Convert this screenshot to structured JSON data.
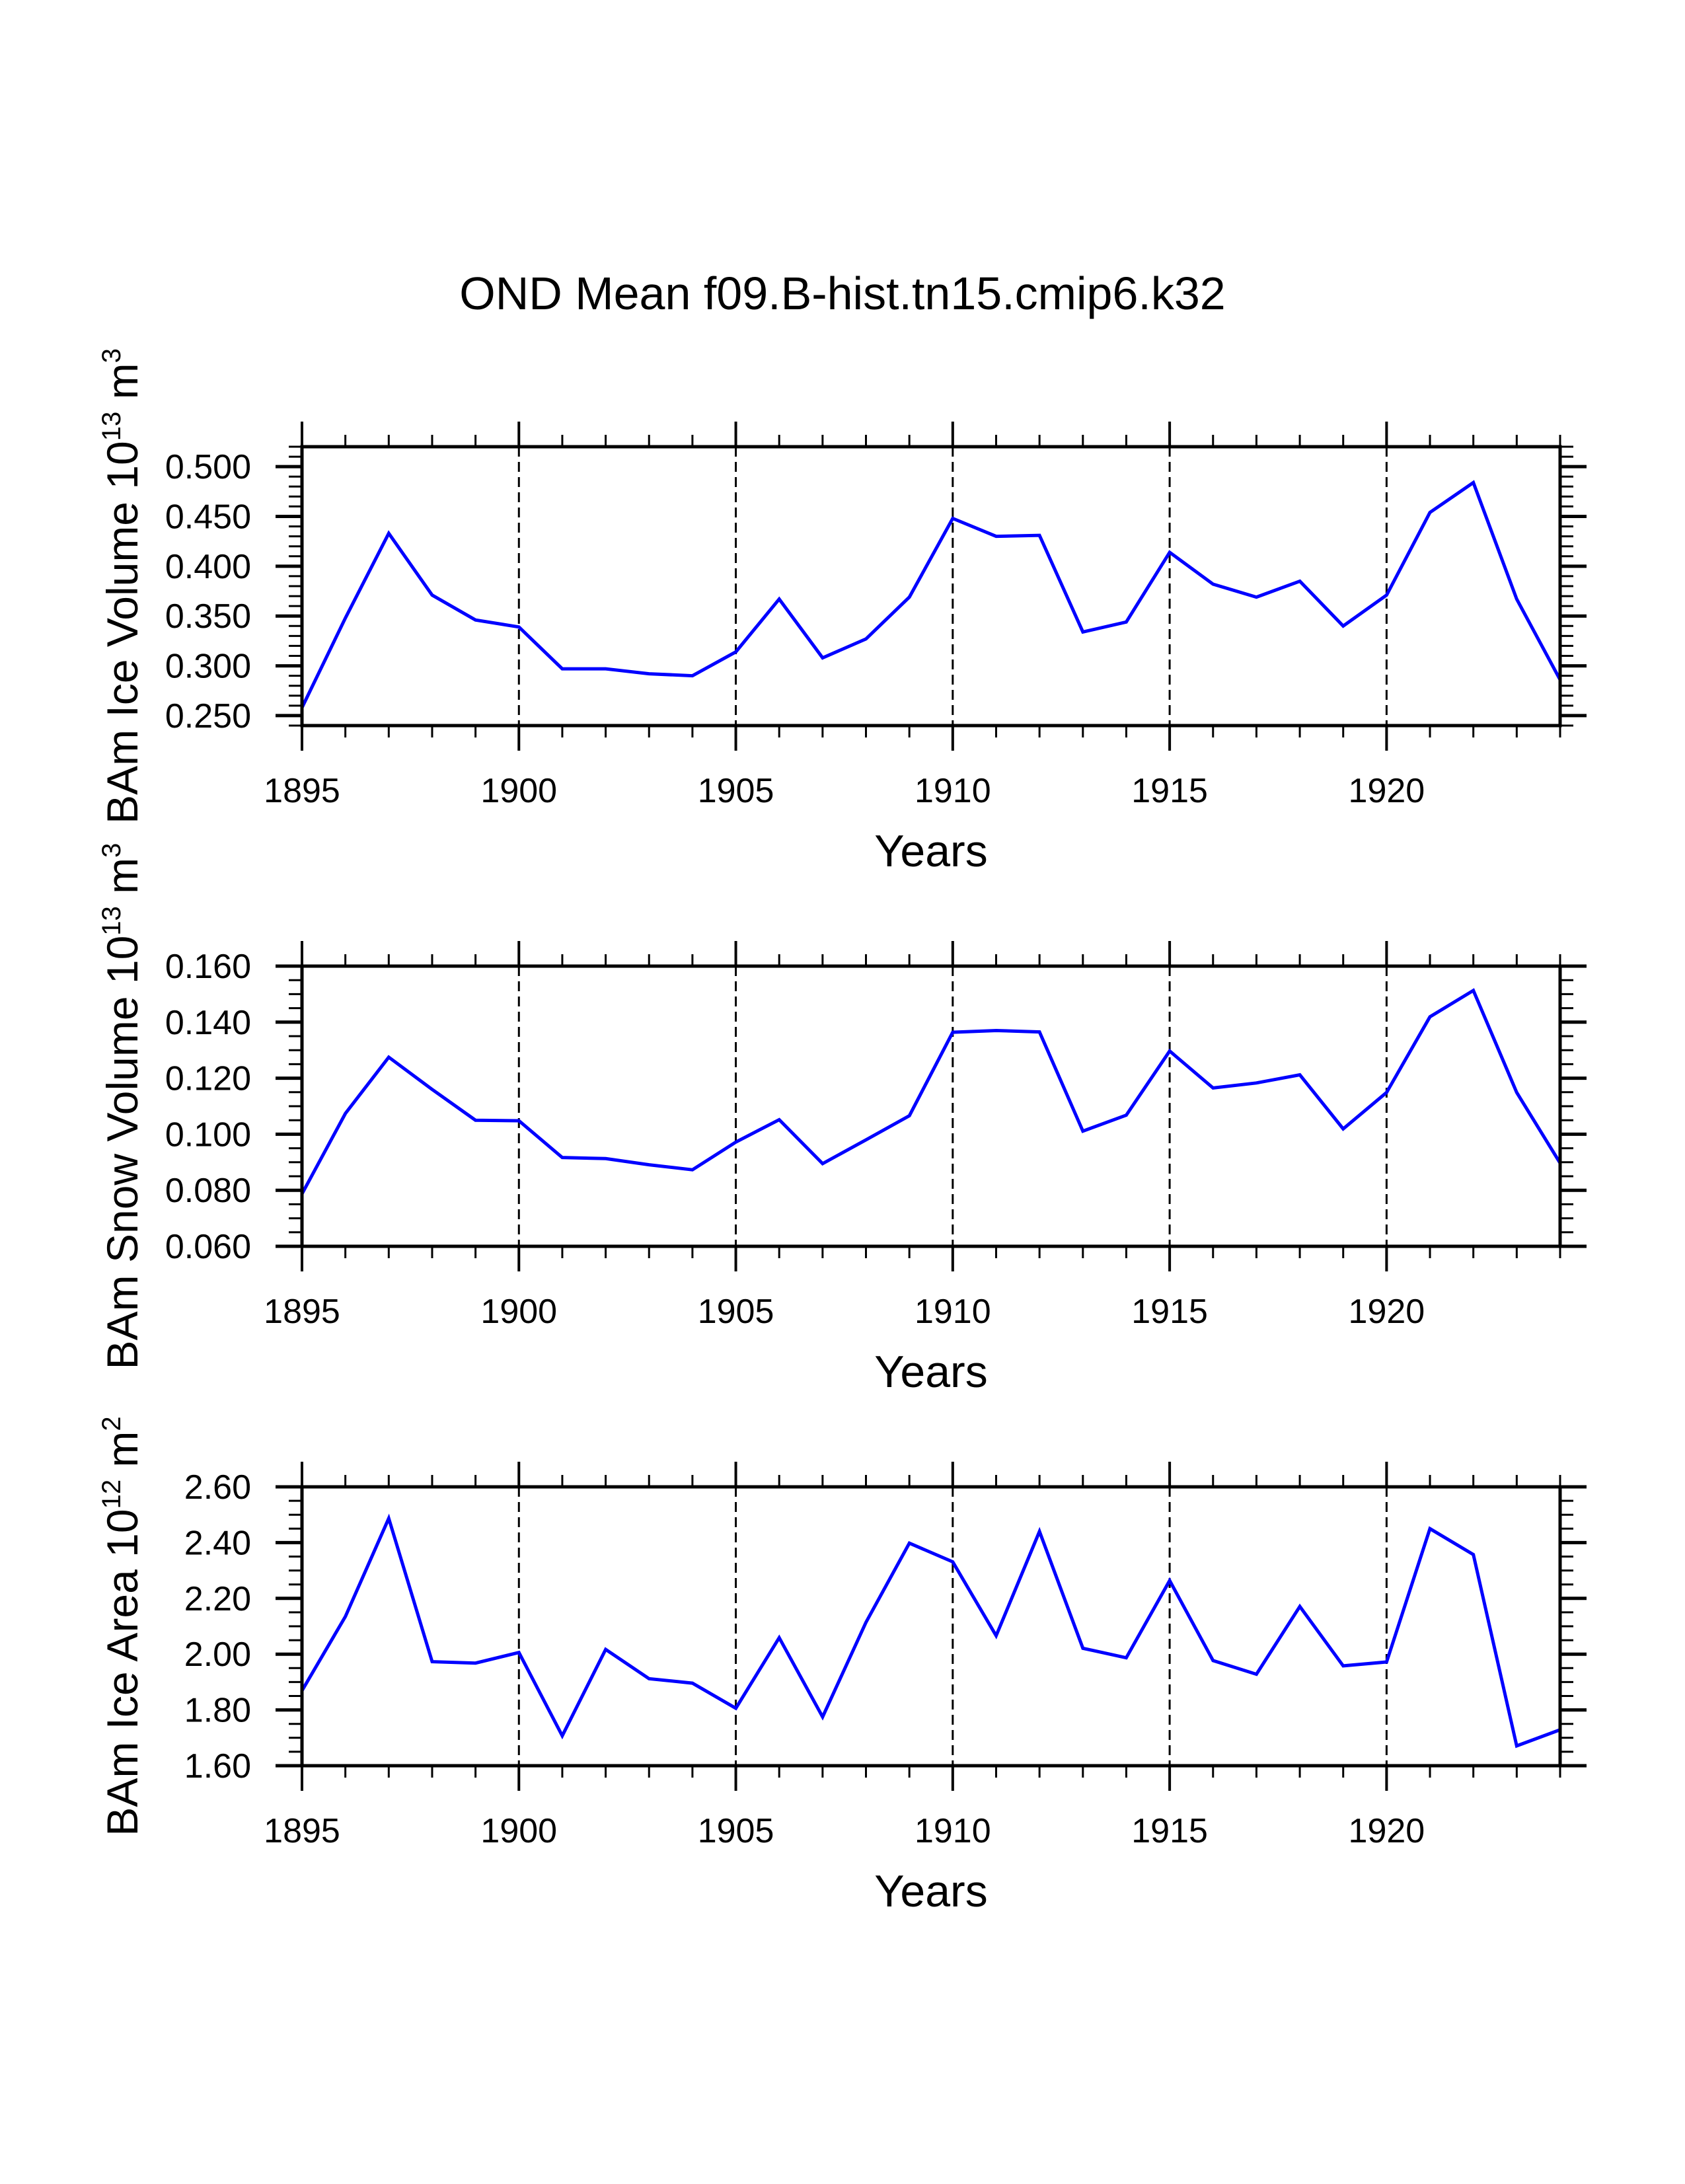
{
  "figure": {
    "title": "OND Mean f09.B-hist.tn15.cmip6.k32",
    "line_color": "#0000FF",
    "grid_color": "#000000"
  },
  "chart_data": [
    {
      "type": "line",
      "title": "OND Mean f09.B-hist.tn15.cmip6.k32",
      "xlabel": "Years",
      "ylabel": {
        "text": "BAm Ice Volume 10",
        "exp": "13",
        "unit": " m",
        "unit_exp": "3"
      },
      "xlim": [
        1895,
        1924
      ],
      "ylim": [
        0.24,
        0.52
      ],
      "x_major_ticks": [
        1895,
        1900,
        1905,
        1910,
        1915,
        1920
      ],
      "x_tick_labels": [
        "1895",
        "1900",
        "1905",
        "1910",
        "1915",
        "1920"
      ],
      "y_major_ticks": [
        0.25,
        0.3,
        0.35,
        0.4,
        0.45,
        0.5
      ],
      "y_tick_labels": [
        "0.250",
        "0.300",
        "0.350",
        "0.400",
        "0.450",
        "0.500"
      ],
      "y_minor_step": 0.01,
      "grid": "dashed vertical lines at major x ticks",
      "x": [
        1895,
        1896,
        1897,
        1898,
        1899,
        1900,
        1901,
        1902,
        1903,
        1904,
        1905,
        1906,
        1907,
        1908,
        1909,
        1910,
        1911,
        1912,
        1913,
        1914,
        1915,
        1916,
        1917,
        1918,
        1919,
        1920,
        1921,
        1922,
        1923,
        1924
      ],
      "series": [
        {
          "name": "BAm Ice Volume",
          "values": [
            0.258,
            0.348,
            0.433,
            0.371,
            0.346,
            0.339,
            0.297,
            0.297,
            0.292,
            0.29,
            0.314,
            0.367,
            0.308,
            0.327,
            0.369,
            0.448,
            0.43,
            0.431,
            0.334,
            0.344,
            0.414,
            0.382,
            0.369,
            0.385,
            0.34,
            0.371,
            0.454,
            0.484,
            0.367,
            0.286
          ]
        }
      ]
    },
    {
      "type": "line",
      "xlabel": "Years",
      "ylabel": {
        "text": "BAm Snow Volume 10",
        "exp": "13",
        "unit": " m",
        "unit_exp": "3"
      },
      "xlim": [
        1895,
        1924
      ],
      "ylim": [
        0.06,
        0.16
      ],
      "x_major_ticks": [
        1895,
        1900,
        1905,
        1910,
        1915,
        1920
      ],
      "x_tick_labels": [
        "1895",
        "1900",
        "1905",
        "1910",
        "1915",
        "1920"
      ],
      "y_major_ticks": [
        0.06,
        0.08,
        0.1,
        0.12,
        0.14,
        0.16
      ],
      "y_tick_labels": [
        "0.060",
        "0.080",
        "0.100",
        "0.120",
        "0.140",
        "0.160"
      ],
      "y_minor_step": 0.005,
      "grid": "dashed vertical lines at major x ticks",
      "x": [
        1895,
        1896,
        1897,
        1898,
        1899,
        1900,
        1901,
        1902,
        1903,
        1904,
        1905,
        1906,
        1907,
        1908,
        1909,
        1910,
        1911,
        1912,
        1913,
        1914,
        1915,
        1916,
        1917,
        1918,
        1919,
        1920,
        1921,
        1922,
        1923,
        1924
      ],
      "series": [
        {
          "name": "BAm Snow Volume",
          "values": [
            0.0787,
            0.1074,
            0.1275,
            0.116,
            0.105,
            0.1048,
            0.0917,
            0.0913,
            0.0891,
            0.0873,
            0.0972,
            0.1052,
            0.0895,
            0.098,
            0.1066,
            0.1364,
            0.137,
            0.1365,
            0.1011,
            0.1068,
            0.1297,
            0.1165,
            0.1183,
            0.1212,
            0.1019,
            0.1149,
            0.1419,
            0.1513,
            0.1149,
            0.0897
          ]
        }
      ]
    },
    {
      "type": "line",
      "xlabel": "Years",
      "ylabel": {
        "text": "BAm Ice Area 10",
        "exp": "12",
        "unit": " m",
        "unit_exp": "2"
      },
      "xlim": [
        1895,
        1924
      ],
      "ylim": [
        1.6,
        2.6
      ],
      "x_major_ticks": [
        1895,
        1900,
        1905,
        1910,
        1915,
        1920
      ],
      "x_tick_labels": [
        "1895",
        "1900",
        "1905",
        "1910",
        "1915",
        "1920"
      ],
      "y_major_ticks": [
        1.6,
        1.8,
        2.0,
        2.2,
        2.4,
        2.6
      ],
      "y_tick_labels": [
        "1.60",
        "1.80",
        "2.00",
        "2.20",
        "2.40",
        "2.60"
      ],
      "y_minor_step": 0.05,
      "grid": "dashed vertical lines at major x ticks",
      "x": [
        1895,
        1896,
        1897,
        1898,
        1899,
        1900,
        1901,
        1902,
        1903,
        1904,
        1905,
        1906,
        1907,
        1908,
        1909,
        1910,
        1911,
        1912,
        1913,
        1914,
        1915,
        1916,
        1917,
        1918,
        1919,
        1920,
        1921,
        1922,
        1923,
        1924
      ],
      "series": [
        {
          "name": "BAm Ice Area",
          "values": [
            1.869,
            2.135,
            2.487,
            1.973,
            1.968,
            2.006,
            1.707,
            2.017,
            1.912,
            1.896,
            1.806,
            2.059,
            1.775,
            2.114,
            2.398,
            2.331,
            2.066,
            2.44,
            2.021,
            1.987,
            2.264,
            1.977,
            1.928,
            2.171,
            1.958,
            1.972,
            2.45,
            2.357,
            1.671,
            1.729
          ]
        }
      ]
    }
  ]
}
